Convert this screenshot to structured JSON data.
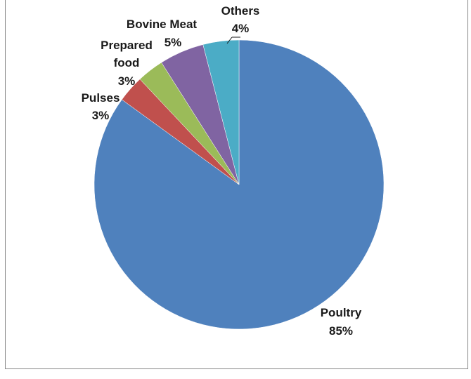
{
  "chart_data": {
    "type": "pie",
    "slices": [
      {
        "name": "Poultry",
        "value": 85,
        "label": "85%",
        "color": "#4f81bd"
      },
      {
        "name": "Pulses",
        "value": 3,
        "label": "3%",
        "color": "#c0504d"
      },
      {
        "name": "Prepared food",
        "value": 3,
        "label": "3%",
        "color": "#9bbb59"
      },
      {
        "name": "Bovine Meat",
        "value": 5,
        "label": "5%",
        "color": "#8064a2"
      },
      {
        "name": "Others",
        "value": 4,
        "label": "4%",
        "color": "#4bacc6"
      }
    ],
    "start_angle_deg": 0,
    "direction": "clockwise",
    "legend": "none"
  }
}
